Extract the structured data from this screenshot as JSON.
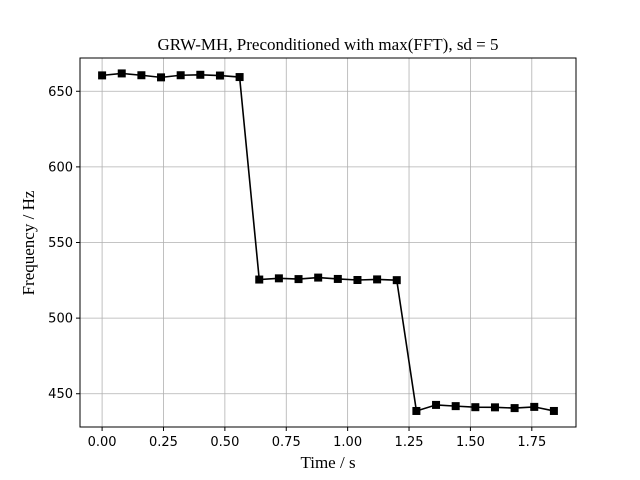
{
  "chart_data": {
    "type": "line",
    "title": "GRW-MH, Preconditioned with max(FFT), sd = 5",
    "xlabel": "Time / s",
    "ylabel": "Frequency / Hz",
    "xlim": [
      -0.09,
      1.93
    ],
    "ylim": [
      428,
      672
    ],
    "xticks": [
      0.0,
      0.25,
      0.5,
      0.75,
      1.0,
      1.25,
      1.5,
      1.75
    ],
    "xtick_labels": [
      "0.00",
      "0.25",
      "0.50",
      "0.75",
      "1.00",
      "1.25",
      "1.50",
      "1.75"
    ],
    "yticks": [
      450,
      500,
      550,
      600,
      650
    ],
    "ytick_labels": [
      "450",
      "500",
      "550",
      "600",
      "650"
    ],
    "grid": true,
    "series": [
      {
        "color": "#000000",
        "marker": "square",
        "x": [
          0.0,
          0.08,
          0.16,
          0.24,
          0.32,
          0.4,
          0.48,
          0.56,
          0.64,
          0.72,
          0.8,
          0.88,
          0.96,
          1.04,
          1.12,
          1.2,
          1.28,
          1.36,
          1.44,
          1.52,
          1.6,
          1.68,
          1.76,
          1.84
        ],
        "y": [
          660.5,
          661.8,
          660.6,
          659.2,
          660.6,
          660.9,
          660.4,
          659.4,
          525.5,
          526.3,
          525.8,
          526.8,
          525.9,
          525.2,
          525.6,
          525.1,
          438.6,
          442.6,
          441.8,
          441.1,
          441.0,
          440.5,
          441.3,
          438.6
        ]
      }
    ]
  }
}
